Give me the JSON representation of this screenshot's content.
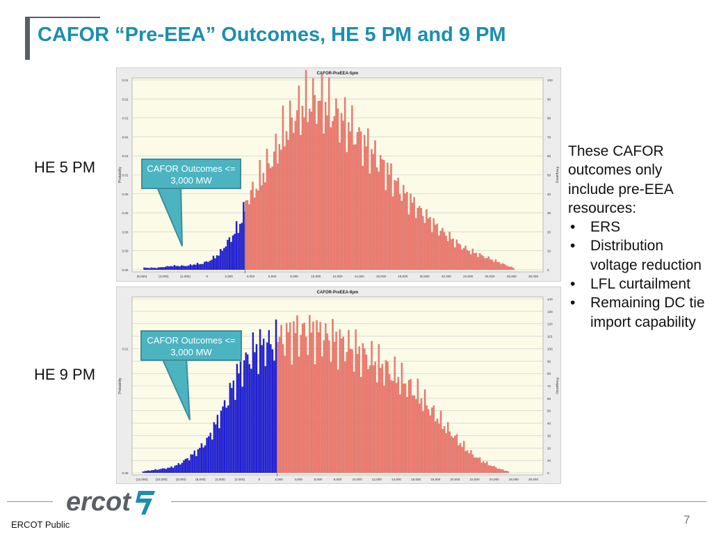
{
  "slide": {
    "title": "CAFOR “Pre-EEA” Outcomes, HE 5 PM and 9 PM",
    "label_top": "HE 5 PM",
    "label_bottom": "HE 9 PM",
    "notes_intro": "These CAFOR outcomes only include pre-EEA resources:",
    "notes_items": [
      "ERS",
      "Distribution voltage reduction",
      "LFL curtailment",
      "Remaining DC tie import capability"
    ],
    "callout_top": "CAFOR Outcomes <= 3,000 MW",
    "callout_bottom": "CAFOR Outcomes <= 3,000 MW",
    "footer_left": "ERCOT Public",
    "page_number": "7",
    "logo_text": "ercot"
  },
  "colors": {
    "title": "#1a8fb0",
    "low_bars": "#1f1fd8",
    "high_bars": "#ef7b70",
    "callout": "#4cb3c1",
    "plot_bg": "#fbfbe8"
  },
  "chart_data": [
    {
      "type": "bar",
      "title": "CAFOR-PreEEA-5pm",
      "ylabel": "Probability",
      "y2label": "Frequency",
      "xlim": [
        -8000,
        32000
      ],
      "x_ticks": [
        "(8,000)",
        "(4,000)",
        "(2,000)",
        "0",
        "2,000",
        "4,000",
        "5,000",
        "8,000",
        "10,000",
        "12,000",
        "14,000",
        "16,000",
        "18,000",
        "20,000",
        "22,000",
        "24,000",
        "26,000",
        "28,000",
        "30,000"
      ],
      "y_ticks": [
        "0.01",
        "0.01",
        "0.01",
        "0.01",
        "0.01",
        "0.01",
        "0.00",
        "0.00",
        "0.00",
        "0.00",
        "0.00"
      ],
      "y2_ticks": [
        "100",
        "90",
        "80",
        "70",
        "60",
        "50",
        "40",
        "30",
        "20",
        "10",
        "0"
      ],
      "y2lim": [
        0,
        100
      ],
      "threshold": 3000,
      "series": [
        {
          "name": "CAFOR Outcomes <= 3,000 MW",
          "points": [
            [
              -7400,
              1
            ],
            [
              -6000,
              1
            ],
            [
              -4500,
              2
            ],
            [
              -3000,
              2
            ],
            [
              -2000,
              3
            ],
            [
              -1500,
              3
            ],
            [
              -1000,
              4
            ],
            [
              -500,
              5
            ],
            [
              0,
              7
            ],
            [
              500,
              9
            ],
            [
              1000,
              13
            ],
            [
              1500,
              16
            ],
            [
              2000,
              20
            ],
            [
              2500,
              24
            ],
            [
              3000,
              32
            ]
          ]
        },
        {
          "name": "CAFOR Outcomes > 3,000 MW",
          "points": [
            [
              3000,
              36
            ],
            [
              4000,
              42
            ],
            [
              5000,
              52
            ],
            [
              6000,
              60
            ],
            [
              7000,
              72
            ],
            [
              8000,
              80
            ],
            [
              9000,
              86
            ],
            [
              10000,
              89
            ],
            [
              11000,
              88
            ],
            [
              12000,
              83
            ],
            [
              13000,
              79
            ],
            [
              14000,
              74
            ],
            [
              15000,
              68
            ],
            [
              16000,
              62
            ],
            [
              17000,
              56
            ],
            [
              18000,
              49
            ],
            [
              19000,
              42
            ],
            [
              20000,
              36
            ],
            [
              21000,
              31
            ],
            [
              22000,
              26
            ],
            [
              23000,
              21
            ],
            [
              24000,
              17
            ],
            [
              25000,
              13
            ],
            [
              26000,
              10
            ],
            [
              27000,
              8
            ],
            [
              28000,
              6
            ],
            [
              29000,
              4
            ],
            [
              30000,
              2
            ],
            [
              30500,
              1
            ]
          ]
        }
      ]
    },
    {
      "type": "bar",
      "title": "CAFOR-PreEEA-9pm",
      "ylabel": "Probability",
      "y2label": "Frequency",
      "xlim": [
        -12000,
        30000
      ],
      "x_ticks": [
        "(12,000)",
        "(10,000)",
        "(8,000)",
        "(6,000)",
        "(4,000)",
        "(2,000)",
        "0",
        "2,000",
        "4,000",
        "6,000",
        "8,000",
        "10,000",
        "12,000",
        "14,000",
        "16,000",
        "18,000",
        "20,000",
        "22,000",
        "24,000",
        "26,000",
        "28,000"
      ],
      "y_ticks": [
        "0.01",
        "0.00"
      ],
      "y2_ticks": [
        "140",
        "130",
        "120",
        "110",
        "100",
        "90",
        "80",
        "70",
        "60",
        "50",
        "40",
        "30",
        "20",
        "10",
        "0"
      ],
      "y2lim": [
        0,
        140
      ],
      "threshold": 3000,
      "series": [
        {
          "name": "CAFOR Outcomes <= 3,000 MW",
          "points": [
            [
              -11500,
              1
            ],
            [
              -10500,
              2
            ],
            [
              -9500,
              3
            ],
            [
              -8500,
              4
            ],
            [
              -7500,
              7
            ],
            [
              -6500,
              12
            ],
            [
              -5500,
              18
            ],
            [
              -4500,
              26
            ],
            [
              -3500,
              40
            ],
            [
              -2500,
              56
            ],
            [
              -1500,
              74
            ],
            [
              -500,
              88
            ],
            [
              500,
              98
            ],
            [
              1500,
              102
            ],
            [
              2500,
              104
            ],
            [
              3000,
              104
            ]
          ]
        },
        {
          "name": "CAFOR Outcomes > 3,000 MW",
          "points": [
            [
              3000,
              105
            ],
            [
              4000,
              110
            ],
            [
              5000,
              112
            ],
            [
              6000,
              113
            ],
            [
              7000,
              112
            ],
            [
              8000,
              110
            ],
            [
              9000,
              107
            ],
            [
              10000,
              104
            ],
            [
              11000,
              100
            ],
            [
              12000,
              96
            ],
            [
              13000,
              92
            ],
            [
              14000,
              87
            ],
            [
              15000,
              82
            ],
            [
              16000,
              77
            ],
            [
              17000,
              71
            ],
            [
              18000,
              64
            ],
            [
              19000,
              56
            ],
            [
              20000,
              47
            ],
            [
              21000,
              38
            ],
            [
              22000,
              30
            ],
            [
              23000,
              22
            ],
            [
              24000,
              15
            ],
            [
              25000,
              10
            ],
            [
              26000,
              6
            ],
            [
              27000,
              3
            ],
            [
              28000,
              1
            ]
          ]
        }
      ]
    }
  ]
}
